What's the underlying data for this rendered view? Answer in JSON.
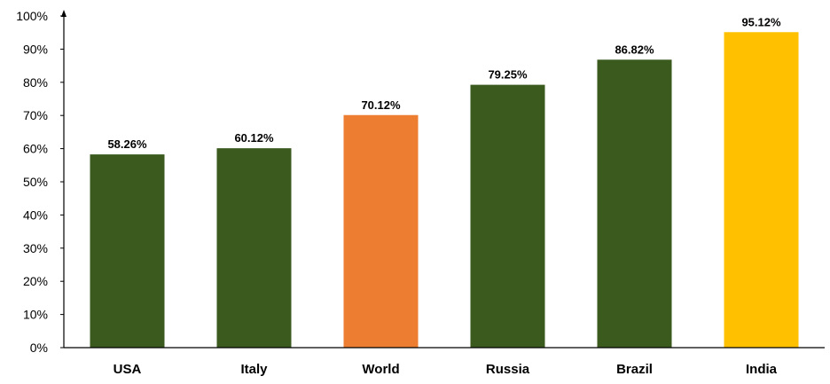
{
  "chart_data": {
    "type": "bar",
    "categories": [
      "USA",
      "Italy",
      "World",
      "Russia",
      "Brazil",
      "India"
    ],
    "values": [
      58.26,
      60.12,
      70.12,
      79.25,
      86.82,
      95.12
    ],
    "value_labels": [
      "58.26%",
      "60.12%",
      "70.12%",
      "79.25%",
      "86.82%",
      "95.12%"
    ],
    "bar_colors": [
      "#3a5a1e",
      "#3a5a1e",
      "#ed7d31",
      "#3a5a1e",
      "#3a5a1e",
      "#ffc000"
    ],
    "ylim": [
      0,
      100
    ],
    "yticks": [
      0,
      10,
      20,
      30,
      40,
      50,
      60,
      70,
      80,
      90,
      100
    ],
    "ytick_labels": [
      "0%",
      "10%",
      "20%",
      "30%",
      "40%",
      "50%",
      "60%",
      "70%",
      "80%",
      "90%",
      "100%"
    ],
    "grid": false,
    "axis_color": "#000000",
    "text_color": "#000000"
  }
}
